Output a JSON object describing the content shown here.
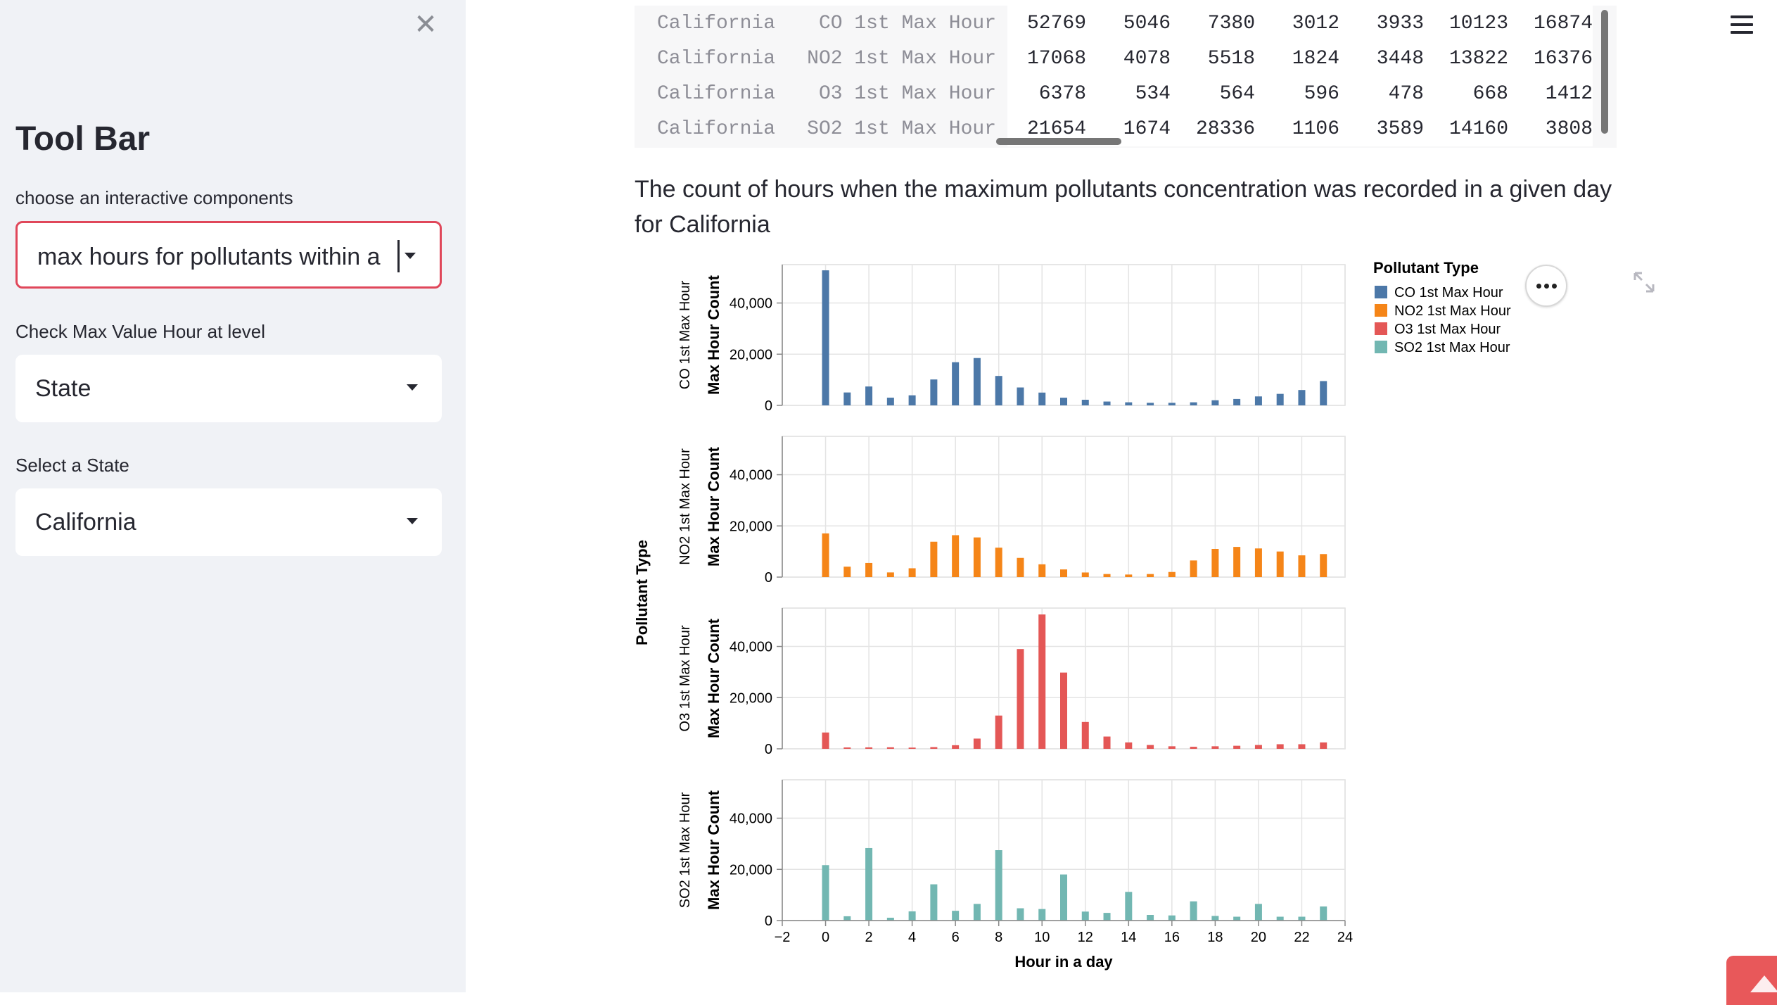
{
  "sidebar": {
    "title": "Tool Bar",
    "component_label": "choose an interactive components",
    "component_value": "max hours for pollutants within a ...",
    "level_label": "Check Max Value Hour at level",
    "level_value": "State",
    "state_label": "Select a State",
    "state_value": "California"
  },
  "icons": {
    "close": "close-icon",
    "menu": "hamburger-menu-icon",
    "more": "more-options-icon",
    "expand": "fullscreen-expand-icon"
  },
  "table": {
    "rows": [
      {
        "state": "California",
        "type": "CO 1st Max Hour",
        "values": [
          "52769",
          "5046",
          "7380",
          "3012",
          "3933",
          "10123",
          "16874"
        ]
      },
      {
        "state": "California",
        "type": "NO2 1st Max Hour",
        "values": [
          "17068",
          "4078",
          "5518",
          "1824",
          "3448",
          "13822",
          "16376"
        ]
      },
      {
        "state": "California",
        "type": "O3 1st Max Hour",
        "values": [
          "6378",
          "534",
          "564",
          "596",
          "478",
          "668",
          "1412"
        ]
      },
      {
        "state": "California",
        "type": "SO2 1st Max Hour",
        "values": [
          "21654",
          "1674",
          "28336",
          "1106",
          "3589",
          "14160",
          "3808"
        ]
      }
    ]
  },
  "description": "The count of hours when the maximum pollutants concentration was recorded in a given day for California",
  "chart_data": {
    "type": "bar",
    "xlabel": "Hour in a day",
    "ylabel": "Max Hour Count",
    "row_label": "Pollutant Type",
    "legend_title": "Pollutant Type",
    "legend_position": "top-right",
    "xlim": [
      -2,
      24
    ],
    "x_ticks": [
      -2,
      0,
      2,
      4,
      6,
      8,
      10,
      12,
      14,
      16,
      18,
      20,
      22,
      24
    ],
    "x_tick_labels": [
      "−2",
      "0",
      "2",
      "4",
      "6",
      "8",
      "10",
      "12",
      "14",
      "16",
      "18",
      "20",
      "22",
      "24"
    ],
    "ylim": [
      0,
      55000
    ],
    "y_ticks": [
      0,
      20000,
      40000
    ],
    "y_tick_labels": [
      "0",
      "20,000",
      "40,000"
    ],
    "grid": true,
    "x": [
      0,
      1,
      2,
      3,
      4,
      5,
      6,
      7,
      8,
      9,
      10,
      11,
      12,
      13,
      14,
      15,
      16,
      17,
      18,
      19,
      20,
      21,
      22,
      23
    ],
    "series": [
      {
        "name": "CO 1st Max Hour",
        "color": "#4c78a8",
        "values": [
          52769,
          5046,
          7380,
          3012,
          3933,
          10123,
          16874,
          18500,
          11500,
          7000,
          5000,
          3000,
          2200,
          1500,
          1200,
          1000,
          1000,
          1200,
          2000,
          2500,
          3500,
          4500,
          6000,
          9500
        ]
      },
      {
        "name": "NO2 1st Max Hour",
        "color": "#f58518",
        "values": [
          17068,
          4078,
          5518,
          1824,
          3448,
          13822,
          16376,
          15500,
          11500,
          7500,
          5000,
          3000,
          1800,
          1200,
          1000,
          1200,
          2000,
          6500,
          11000,
          11800,
          11200,
          10000,
          8500,
          9000
        ]
      },
      {
        "name": "O3 1st Max Hour",
        "color": "#e45756",
        "values": [
          6378,
          534,
          564,
          596,
          478,
          668,
          1412,
          4000,
          13000,
          39000,
          52500,
          29800,
          10500,
          4800,
          2500,
          1500,
          1000,
          800,
          1000,
          1200,
          1500,
          1800,
          1800,
          2500
        ]
      },
      {
        "name": "SO2 1st Max Hour",
        "color": "#72b7b2",
        "values": [
          21654,
          1674,
          28336,
          1106,
          3589,
          14160,
          3808,
          6500,
          27500,
          4800,
          4500,
          18000,
          3500,
          3000,
          11200,
          2200,
          2000,
          7500,
          1800,
          1500,
          6500,
          1500,
          1500,
          5500
        ]
      }
    ]
  }
}
